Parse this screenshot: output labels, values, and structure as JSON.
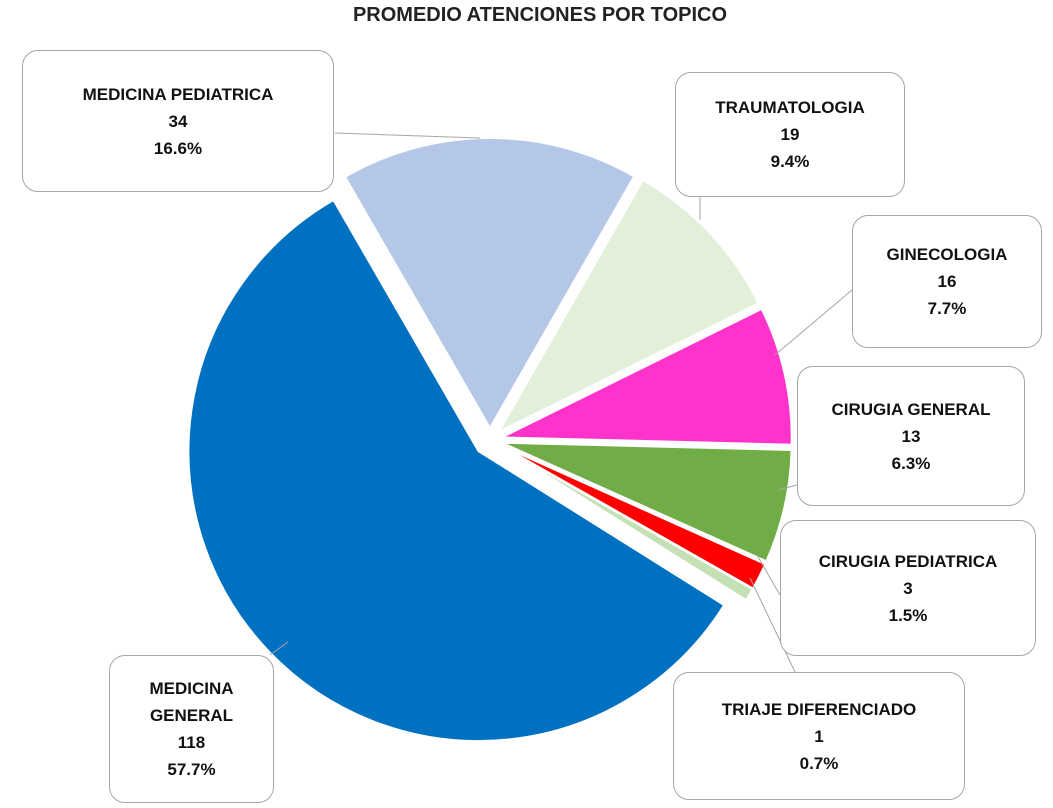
{
  "chart_data": {
    "type": "pie",
    "title": "PROMEDIO ATENCIONES POR TOPICO",
    "categories": [
      "MEDICINA PEDIATRICA",
      "TRAUMATOLOGIA",
      "GINECOLOGIA",
      "CIRUGIA GENERAL",
      "CIRUGIA PEDIATRICA",
      "TRIAJE DIFERENCIADO",
      "MEDICINA GENERAL"
    ],
    "values": [
      16.6,
      9.4,
      7.7,
      6.3,
      1.5,
      0.7,
      57.7
    ],
    "value_labels": [
      "16.6%",
      "9.4%",
      "7.7%",
      "6.3%",
      "1.5%",
      "0.7%",
      "57.7%"
    ],
    "counts": [
      34,
      19,
      16,
      13,
      3,
      1,
      118
    ],
    "colors": [
      "#b4c7e7",
      "#e2f0d9",
      "#ff33cc",
      "#70ad47",
      "#ff0000",
      "#c5e0b4",
      "#0070c0"
    ]
  }
}
